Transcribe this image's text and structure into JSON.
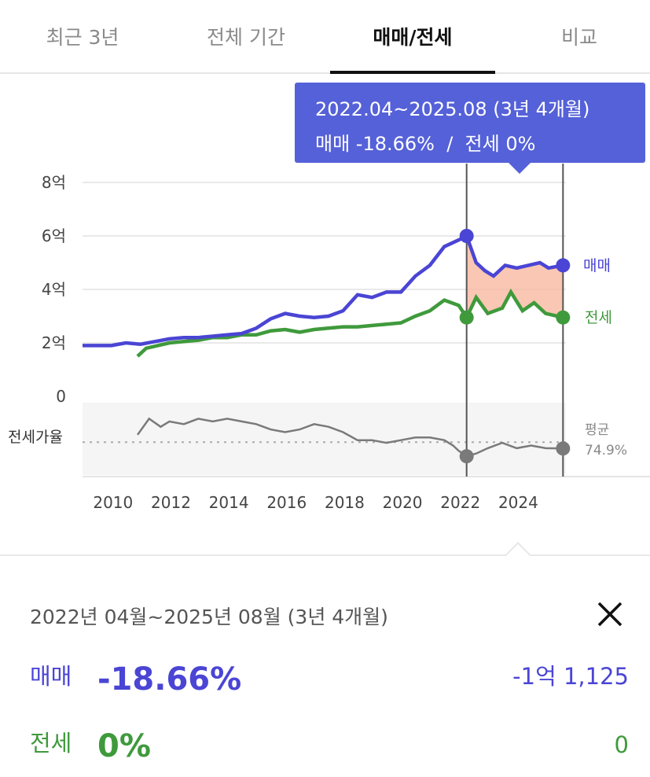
{
  "tabs": [
    {
      "label": "최근 3년"
    },
    {
      "label": "전체 기간"
    },
    {
      "label": "매매/전세"
    },
    {
      "label": "비교"
    }
  ],
  "active_tab": "매매/전세",
  "colors": {
    "sale": "#4a45d4",
    "rent": "#3f9a3c",
    "ratio": "#7a7a7a",
    "tooltip_bg": "#5561d8",
    "range_fill": "#f7b49a"
  },
  "tooltip": {
    "line1": "2022.04~2025.08 (3년 4개월)",
    "line2": "매매 -18.66%  /  전세 0%"
  },
  "chart_data": {
    "type": "line",
    "x_ticks": [
      "2010",
      "2012",
      "2014",
      "2016",
      "2018",
      "2020",
      "2022",
      "2024"
    ],
    "x_range": [
      2009.0,
      2025.7
    ],
    "y_ticks": [
      {
        "value": 0,
        "label": "0"
      },
      {
        "value": 2,
        "label": "2억"
      },
      {
        "value": 4,
        "label": "4억"
      },
      {
        "value": 6,
        "label": "6억"
      },
      {
        "value": 8,
        "label": "8억"
      }
    ],
    "y_range": [
      0,
      8
    ],
    "unit": "억",
    "series": [
      {
        "name": "매매",
        "key": "sale",
        "points": [
          [
            2009.0,
            1.9
          ],
          [
            2009.5,
            1.9
          ],
          [
            2010.0,
            1.9
          ],
          [
            2010.5,
            2.0
          ],
          [
            2011.0,
            1.95
          ],
          [
            2011.5,
            2.05
          ],
          [
            2012.0,
            2.15
          ],
          [
            2012.5,
            2.2
          ],
          [
            2013.0,
            2.2
          ],
          [
            2013.5,
            2.25
          ],
          [
            2014.0,
            2.3
          ],
          [
            2014.5,
            2.35
          ],
          [
            2015.0,
            2.55
          ],
          [
            2015.5,
            2.9
          ],
          [
            2016.0,
            3.1
          ],
          [
            2016.5,
            3.0
          ],
          [
            2017.0,
            2.95
          ],
          [
            2017.5,
            3.0
          ],
          [
            2018.0,
            3.2
          ],
          [
            2018.5,
            3.8
          ],
          [
            2019.0,
            3.7
          ],
          [
            2019.5,
            3.9
          ],
          [
            2020.0,
            3.9
          ],
          [
            2020.5,
            4.5
          ],
          [
            2021.0,
            4.9
          ],
          [
            2021.5,
            5.6
          ],
          [
            2022.0,
            5.85
          ],
          [
            2022.27,
            6.0
          ],
          [
            2022.6,
            5.0
          ],
          [
            2022.9,
            4.7
          ],
          [
            2023.2,
            4.5
          ],
          [
            2023.6,
            4.9
          ],
          [
            2024.0,
            4.8
          ],
          [
            2024.4,
            4.9
          ],
          [
            2024.8,
            5.0
          ],
          [
            2025.1,
            4.8
          ],
          [
            2025.6,
            4.9
          ]
        ]
      },
      {
        "name": "전세",
        "key": "rent",
        "points": [
          [
            2010.9,
            1.5
          ],
          [
            2011.2,
            1.8
          ],
          [
            2011.6,
            1.9
          ],
          [
            2012.0,
            2.0
          ],
          [
            2012.5,
            2.05
          ],
          [
            2013.0,
            2.1
          ],
          [
            2013.5,
            2.2
          ],
          [
            2014.0,
            2.2
          ],
          [
            2014.5,
            2.3
          ],
          [
            2015.0,
            2.3
          ],
          [
            2015.5,
            2.45
          ],
          [
            2016.0,
            2.5
          ],
          [
            2016.5,
            2.4
          ],
          [
            2017.0,
            2.5
          ],
          [
            2017.5,
            2.55
          ],
          [
            2018.0,
            2.6
          ],
          [
            2018.5,
            2.6
          ],
          [
            2019.0,
            2.65
          ],
          [
            2019.5,
            2.7
          ],
          [
            2020.0,
            2.75
          ],
          [
            2020.5,
            3.0
          ],
          [
            2021.0,
            3.2
          ],
          [
            2021.5,
            3.6
          ],
          [
            2022.0,
            3.4
          ],
          [
            2022.27,
            2.95
          ],
          [
            2022.6,
            3.7
          ],
          [
            2023.0,
            3.1
          ],
          [
            2023.5,
            3.3
          ],
          [
            2023.8,
            3.9
          ],
          [
            2024.2,
            3.2
          ],
          [
            2024.6,
            3.5
          ],
          [
            2025.0,
            3.1
          ],
          [
            2025.6,
            2.95
          ]
        ]
      },
      {
        "name": "전세가율",
        "key": "ratio",
        "points": [
          [
            2010.9,
            80
          ],
          [
            2011.3,
            86
          ],
          [
            2011.7,
            83
          ],
          [
            2012.0,
            85
          ],
          [
            2012.5,
            84
          ],
          [
            2013.0,
            86
          ],
          [
            2013.5,
            85
          ],
          [
            2014.0,
            86
          ],
          [
            2014.5,
            85
          ],
          [
            2015.0,
            84
          ],
          [
            2015.5,
            82
          ],
          [
            2016.0,
            81
          ],
          [
            2016.5,
            82
          ],
          [
            2017.0,
            84
          ],
          [
            2017.5,
            83
          ],
          [
            2018.0,
            81
          ],
          [
            2018.5,
            78
          ],
          [
            2019.0,
            78
          ],
          [
            2019.5,
            77
          ],
          [
            2020.0,
            78
          ],
          [
            2020.5,
            79
          ],
          [
            2021.0,
            79
          ],
          [
            2021.5,
            78
          ],
          [
            2021.8,
            76
          ],
          [
            2022.0,
            74
          ],
          [
            2022.27,
            72
          ],
          [
            2022.6,
            73
          ],
          [
            2023.0,
            75
          ],
          [
            2023.5,
            77
          ],
          [
            2024.0,
            75
          ],
          [
            2024.5,
            76
          ],
          [
            2025.0,
            75
          ],
          [
            2025.6,
            74.9
          ]
        ]
      }
    ],
    "ratio_label": "전세가율",
    "ratio_avg_label": "평균",
    "ratio_avg_value": "74.9%",
    "selection": {
      "start": 2022.27,
      "end": 2025.6
    }
  },
  "panel": {
    "title": "2022년 04월~2025년 08월 (3년 4개월)",
    "sale": {
      "label": "매매",
      "percent": "-18.66%",
      "amount": "-1억 1,125"
    },
    "rent": {
      "label": "전세",
      "percent": "0%",
      "amount": "0"
    }
  }
}
